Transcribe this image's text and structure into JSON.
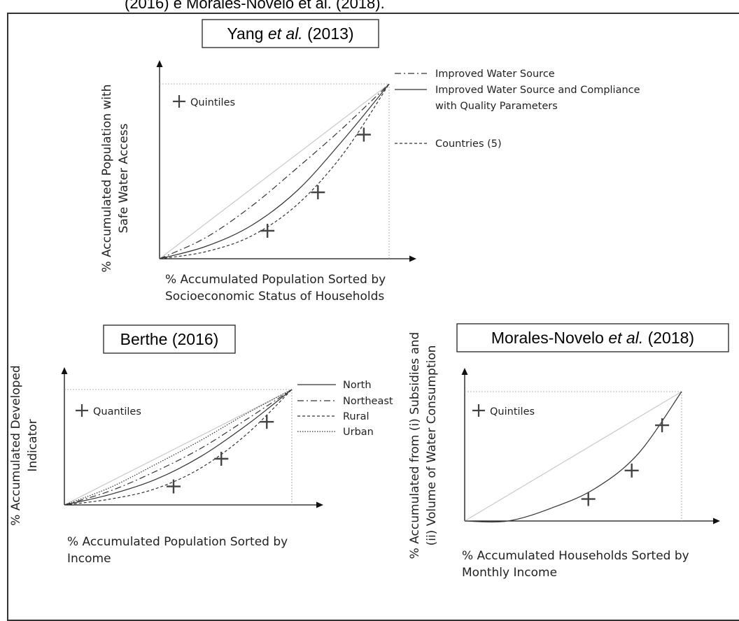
{
  "figure": {
    "caption_fragment": "(2016) e Morales-Novelo et al. (2018)."
  },
  "chart_data": [
    {
      "type": "line",
      "title": {
        "prefix": "Yang ",
        "italic": "et al.",
        "suffix": " (2013)"
      },
      "xlabel": [
        "% Accumulated Population Sorted by",
        "Socioeconomic Status of Households"
      ],
      "ylabel": [
        "% Accumulated Population with",
        "Safe Water Access"
      ],
      "marker_label": "Quintiles",
      "xlim": [
        0,
        1
      ],
      "ylim": [
        0,
        1
      ],
      "x": [
        0,
        0.2,
        0.4,
        0.6,
        0.8,
        1.0
      ],
      "series": [
        {
          "name": "Improved Water Source",
          "style": "dashdot",
          "values": [
            0,
            0.12,
            0.3,
            0.52,
            0.75,
            1.0
          ]
        },
        {
          "name": "Improved Water Source and Compliance with Quality Parameters",
          "style": "solid",
          "values": [
            0,
            0.07,
            0.19,
            0.39,
            0.68,
            1.0
          ]
        },
        {
          "name": "Countries (5)",
          "style": "shortdash",
          "values": [
            0,
            0.04,
            0.13,
            0.31,
            0.6,
            1.0
          ]
        }
      ],
      "markers": [
        {
          "x": 0.47,
          "y": 0.16
        },
        {
          "x": 0.69,
          "y": 0.38
        },
        {
          "x": 0.89,
          "y": 0.71
        }
      ],
      "equality_line": true
    },
    {
      "type": "line",
      "title": {
        "prefix": "Berthe (2016)",
        "italic": "",
        "suffix": ""
      },
      "xlabel": [
        "% Accumulated Population Sorted by",
        "Income"
      ],
      "ylabel": [
        "% Accumulated Developed",
        "Indicator"
      ],
      "marker_label": "Quantiles",
      "xlim": [
        0,
        1
      ],
      "ylim": [
        0,
        1
      ],
      "x": [
        0,
        0.2,
        0.4,
        0.6,
        0.8,
        1.0
      ],
      "series": [
        {
          "name": "North",
          "style": "solid",
          "values": [
            0,
            0.09,
            0.22,
            0.42,
            0.69,
            1.0
          ]
        },
        {
          "name": "Northeast",
          "style": "dashdot",
          "values": [
            0,
            0.12,
            0.29,
            0.49,
            0.74,
            1.0
          ]
        },
        {
          "name": "Rural",
          "style": "shortdash",
          "values": [
            0,
            0.05,
            0.14,
            0.32,
            0.61,
            1.0
          ]
        },
        {
          "name": "Urban",
          "style": "dotted",
          "values": [
            0,
            0.15,
            0.35,
            0.56,
            0.79,
            1.0
          ]
        }
      ],
      "markers": [
        {
          "x": 0.48,
          "y": 0.16
        },
        {
          "x": 0.69,
          "y": 0.4
        },
        {
          "x": 0.89,
          "y": 0.72
        }
      ],
      "equality_line": true
    },
    {
      "type": "line",
      "title": {
        "prefix": "Morales-Novelo ",
        "italic": "et al.",
        "suffix": "  (2018)"
      },
      "xlabel": [
        "% Accumulated Households Sorted by",
        "Monthly Income"
      ],
      "ylabel": [
        "% Accumulated from (i) Subsidies and",
        "(ii) Volume of Water Consumption"
      ],
      "marker_label": "Quintiles",
      "xlim": [
        0,
        1
      ],
      "ylim": [
        0,
        1
      ],
      "x": [
        0,
        0.2,
        0.4,
        0.6,
        0.8,
        1.0
      ],
      "series": [
        {
          "name": "",
          "style": "solid",
          "values": [
            0,
            0.0,
            0.1,
            0.25,
            0.52,
            1.0
          ]
        }
      ],
      "markers": [
        {
          "x": 0.57,
          "y": 0.17
        },
        {
          "x": 0.77,
          "y": 0.39
        },
        {
          "x": 0.91,
          "y": 0.74
        }
      ],
      "equality_line": true
    }
  ]
}
